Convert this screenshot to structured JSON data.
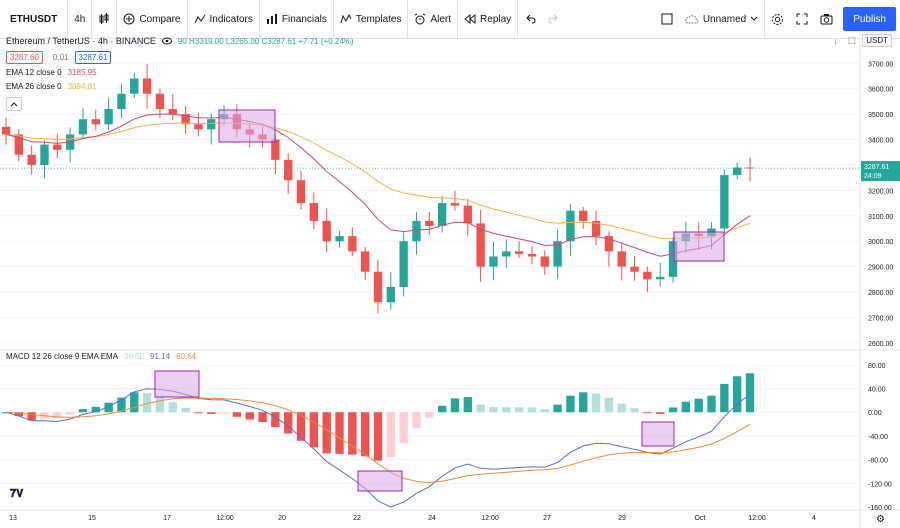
{
  "toolbar": {
    "symbol": "ETHUSDT",
    "interval": "4h",
    "compare": "Compare",
    "indicators": "Indicators",
    "financials": "Financials",
    "templates": "Templates",
    "alert": "Alert",
    "replay": "Replay",
    "layout_name": "Unnamed",
    "publish": "Publish"
  },
  "legend": {
    "pair": "Ethereum / TetherUS · 4h · BINANCE",
    "ohlc": "90 H3319.00 L3265.00 C3287.61 +7.71 (+0.24%)",
    "bid": "3287.60",
    "spread": "0.01",
    "ask": "3287.61",
    "ema12": "EMA 12 close 0",
    "ema12_value": "3185.95",
    "ema26": "EMA 26 close 0",
    "ema26_value": "3094.81",
    "currency": "USDT"
  },
  "macd_legend": {
    "label": "MACD 12 26 close 9 EMA EMA",
    "hist_value": "30.50",
    "macd_value": "91.14",
    "signal_value": "60.64"
  },
  "price_axis": {
    "ticks": [
      "3700.00",
      "3600.00",
      "3500.00",
      "3400.00",
      "3300.00",
      "3200.00",
      "3100.00",
      "3000.00",
      "2900.00",
      "2800.00",
      "2700.00",
      "2600.00"
    ],
    "last_price": "3287.61",
    "countdown": "24:09"
  },
  "macd_axis": {
    "ticks": [
      "80.00",
      "40.00",
      "0.00",
      "-40.00",
      "-80.00",
      "-120.00",
      "-160.00"
    ]
  },
  "time_axis": {
    "labels": [
      "13",
      "15",
      "17",
      "12:00",
      "20",
      "22",
      "24",
      "12:00",
      "27",
      "29",
      "Oct",
      "12:00",
      "4"
    ]
  },
  "colors": {
    "up": "#26a69a",
    "down": "#ef5350",
    "ema12": "#d1467b",
    "ema26": "#f0b34a",
    "macd": "#5b6ed1",
    "signal": "#ef8c3a",
    "highlight": "#d9a8e6",
    "accent": "#2962ff"
  },
  "chart_data": {
    "type": "line",
    "title": "Ethereum / TetherUS · 4h · BINANCE",
    "price_candles_close": [
      3420,
      3340,
      3300,
      3380,
      3360,
      3420,
      3480,
      3460,
      3520,
      3580,
      3640,
      3580,
      3520,
      3500,
      3460,
      3440,
      3480,
      3500,
      3440,
      3420,
      3400,
      3320,
      3240,
      3150,
      3080,
      3000,
      3020,
      2960,
      2880,
      2760,
      2820,
      3000,
      3080,
      3060,
      3150,
      3140,
      3070,
      2900,
      2940,
      2960,
      2950,
      2940,
      2900,
      3000,
      3120,
      3080,
      3020,
      2960,
      2900,
      2880,
      2850,
      2860,
      3000,
      3030,
      3020,
      3050,
      3260,
      3290,
      3287
    ],
    "ema12_last": 3185.95,
    "ema26_last": 3094.81,
    "macd_last": 91.14,
    "signal_last": 60.64,
    "hist_last": 30.5,
    "ylim": [
      2600,
      3750
    ]
  }
}
